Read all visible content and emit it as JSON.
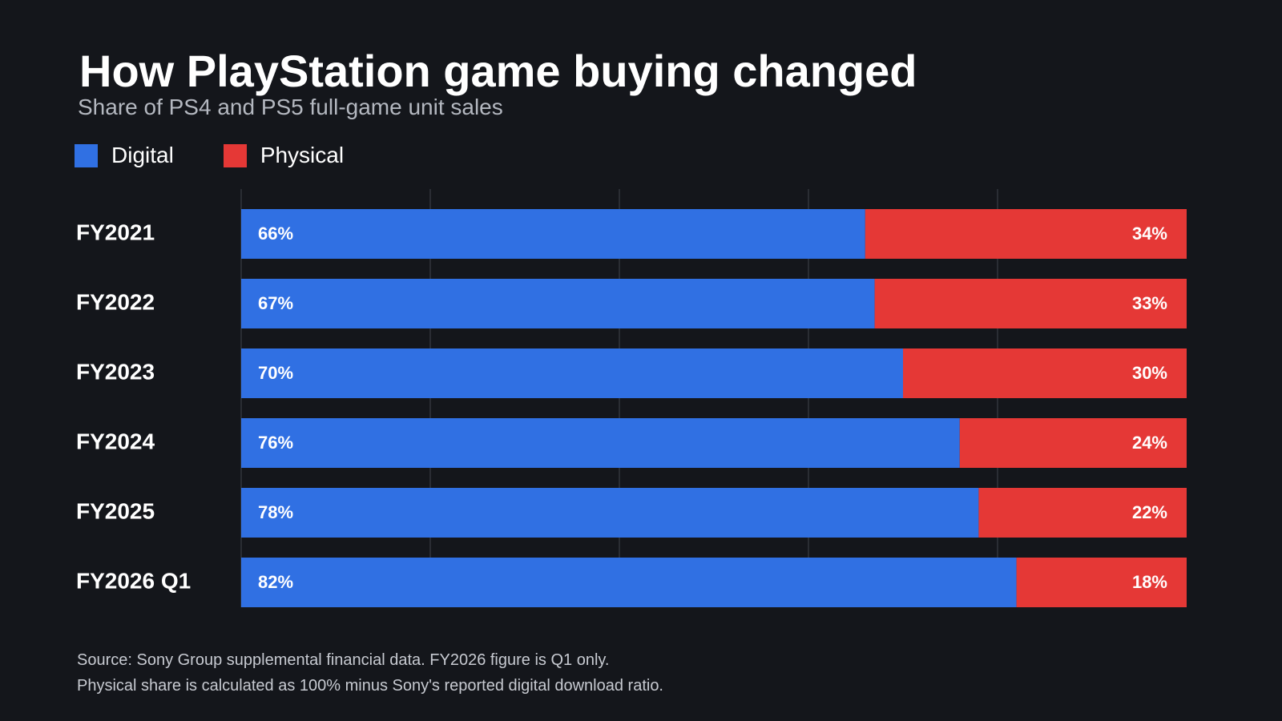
{
  "header": {
    "title": "How PlayStation game buying changed",
    "subtitle": "Share of PS4 and PS5 full-game unit sales"
  },
  "legend": [
    {
      "label": "Digital",
      "color": "#3070e3"
    },
    {
      "label": "Physical",
      "color": "#e53836"
    }
  ],
  "chart_data": {
    "type": "bar",
    "orientation": "horizontal",
    "stacked": true,
    "categories": [
      "FY2021",
      "FY2022",
      "FY2023",
      "FY2024",
      "FY2025",
      "FY2026 Q1"
    ],
    "series": [
      {
        "name": "Digital",
        "values": [
          66,
          67,
          70,
          76,
          78,
          82
        ],
        "color": "#3070e3",
        "labels": [
          "66%",
          "67%",
          "70%",
          "76%",
          "78%",
          "82%"
        ]
      },
      {
        "name": "Physical",
        "values": [
          34,
          33,
          30,
          24,
          22,
          18
        ],
        "color": "#e53836",
        "labels": [
          "34%",
          "33%",
          "30%",
          "24%",
          "22%",
          "18%"
        ]
      }
    ],
    "xlim": [
      0,
      100
    ],
    "grid": true,
    "legend_position": "top-left"
  },
  "footer": {
    "line1": "Source: Sony Group supplemental financial data. FY2026 figure is Q1 only.",
    "line2": "Physical share is calculated as 100% minus Sony's reported digital download ratio."
  }
}
